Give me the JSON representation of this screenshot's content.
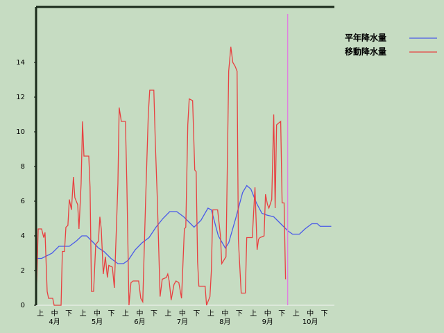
{
  "chart_data": {
    "type": "line",
    "x_labels": [
      "上",
      "中",
      "下",
      "上",
      "中",
      "下",
      "上",
      "中",
      "下",
      "上",
      "中",
      "下",
      "上",
      "中",
      "下",
      "上",
      "中",
      "下",
      "上",
      "中",
      "下"
    ],
    "months": [
      "4月",
      "5月",
      "6月",
      "7月",
      "8月",
      "9月",
      "10月"
    ],
    "xlim": [
      0,
      21
    ],
    "ylim": [
      0,
      17.2
    ],
    "yticks": [
      0,
      2,
      4,
      6,
      8,
      10,
      12,
      14
    ],
    "marker_x": 17.71,
    "marker_color": "#e080e0",
    "series": [
      {
        "name": "平年降水量",
        "color": "#4a5ae8",
        "x": [
          0,
          0.05,
          0.39,
          0.63,
          1.12,
          1.61,
          2.34,
          2.83,
          3.22,
          3.56,
          4.05,
          4.39,
          4.78,
          5.27,
          5.76,
          6.15,
          6.49,
          6.98,
          7.46,
          7.95,
          8.44,
          8.93,
          9.41,
          9.9,
          10.39,
          10.88,
          11.12,
          11.61,
          12.1,
          12.34,
          12.83,
          13.32,
          13.56,
          14.05,
          14.54,
          14.83,
          15.12,
          15.51,
          15.9,
          16.24,
          16.73,
          17.22,
          17.71,
          18.05,
          18.54,
          18.93,
          19.41,
          19.8,
          20.0,
          20.78
        ],
        "values": [
          0,
          2.7,
          2.7,
          2.8,
          3,
          3.4,
          3.4,
          3.7,
          4,
          4,
          3.6,
          3.3,
          3.1,
          2.7,
          2.4,
          2.4,
          2.6,
          3.2,
          3.6,
          3.9,
          4.5,
          5,
          5.4,
          5.4,
          5.1,
          4.7,
          4.5,
          4.9,
          5.6,
          5.5,
          4,
          3.3,
          3.6,
          5,
          6.5,
          6.9,
          6.7,
          5.9,
          5.3,
          5.2,
          5.1,
          4.7,
          4.3,
          4.1,
          4.1,
          4.4,
          4.7,
          4.7,
          4.55,
          4.55
        ]
      },
      {
        "name": "移動降水量",
        "color": "#e84040",
        "x": [
          0,
          0.15,
          0.39,
          0.54,
          0.63,
          0.78,
          0.88,
          1.17,
          1.27,
          1.76,
          1.85,
          2.0,
          2.1,
          2.24,
          2.34,
          2.49,
          2.63,
          2.73,
          2.93,
          3.02,
          3.17,
          3.27,
          3.37,
          3.71,
          3.8,
          3.9,
          4.05,
          4.2,
          4.39,
          4.49,
          4.59,
          4.73,
          4.88,
          5.02,
          5.12,
          5.37,
          5.51,
          5.76,
          5.85,
          6.0,
          6.29,
          6.39,
          6.54,
          6.68,
          6.83,
          7.22,
          7.37,
          7.51,
          7.71,
          7.9,
          8.0,
          8.29,
          8.39,
          8.54,
          8.73,
          8.88,
          9.17,
          9.27,
          9.37,
          9.51,
          9.71,
          9.85,
          10.05,
          10.24,
          10.44,
          10.54,
          10.68,
          10.78,
          11.02,
          11.17,
          11.27,
          11.37,
          11.46,
          11.9,
          12.0,
          12.24,
          12.34,
          12.44,
          12.78,
          12.98,
          13.07,
          13.22,
          13.37,
          13.56,
          13.71,
          13.85,
          14.0,
          14.15,
          14.24,
          14.44,
          14.73,
          14.83,
          15.12,
          15.22,
          15.41,
          15.56,
          15.66,
          15.76,
          16.05,
          16.15,
          16.29,
          16.39,
          16.59,
          16.73,
          16.83,
          16.93,
          17.07,
          17.22,
          17.32,
          17.46,
          17.56
        ],
        "values": [
          0,
          4.4,
          4.4,
          3.9,
          4.2,
          0.8,
          0.4,
          0.4,
          0,
          0,
          3.1,
          3.1,
          4.5,
          4.6,
          6.1,
          5.5,
          7.4,
          6.2,
          5.8,
          4.4,
          7,
          10.6,
          8.6,
          8.6,
          6.8,
          0.8,
          0.8,
          3.5,
          3.7,
          5.1,
          4.4,
          1.8,
          2.8,
          1.6,
          2.3,
          2.2,
          1,
          7,
          11.4,
          10.6,
          10.6,
          7,
          0,
          1.3,
          1.4,
          1.4,
          0.4,
          0.2,
          6,
          11,
          12.4,
          12.4,
          9.5,
          6,
          0.5,
          1.5,
          1.6,
          1.8,
          1.4,
          0.3,
          1.2,
          1.4,
          1.3,
          0.4,
          4.4,
          4.5,
          10.4,
          11.9,
          11.8,
          7.8,
          7.7,
          2.5,
          1.1,
          1.1,
          0,
          0.5,
          2,
          5.5,
          5.5,
          4,
          2.4,
          2.6,
          2.8,
          13.5,
          14.9,
          14,
          13.8,
          13.5,
          3.8,
          0.7,
          0.7,
          3.9,
          3.9,
          3.9,
          6.8,
          3.2,
          3.8,
          3.9,
          4,
          6.4,
          5.8,
          5.6,
          6.1,
          11,
          5.6,
          10.4,
          10.5,
          10.6,
          5.9,
          5.9,
          1.5
        ]
      }
    ]
  }
}
